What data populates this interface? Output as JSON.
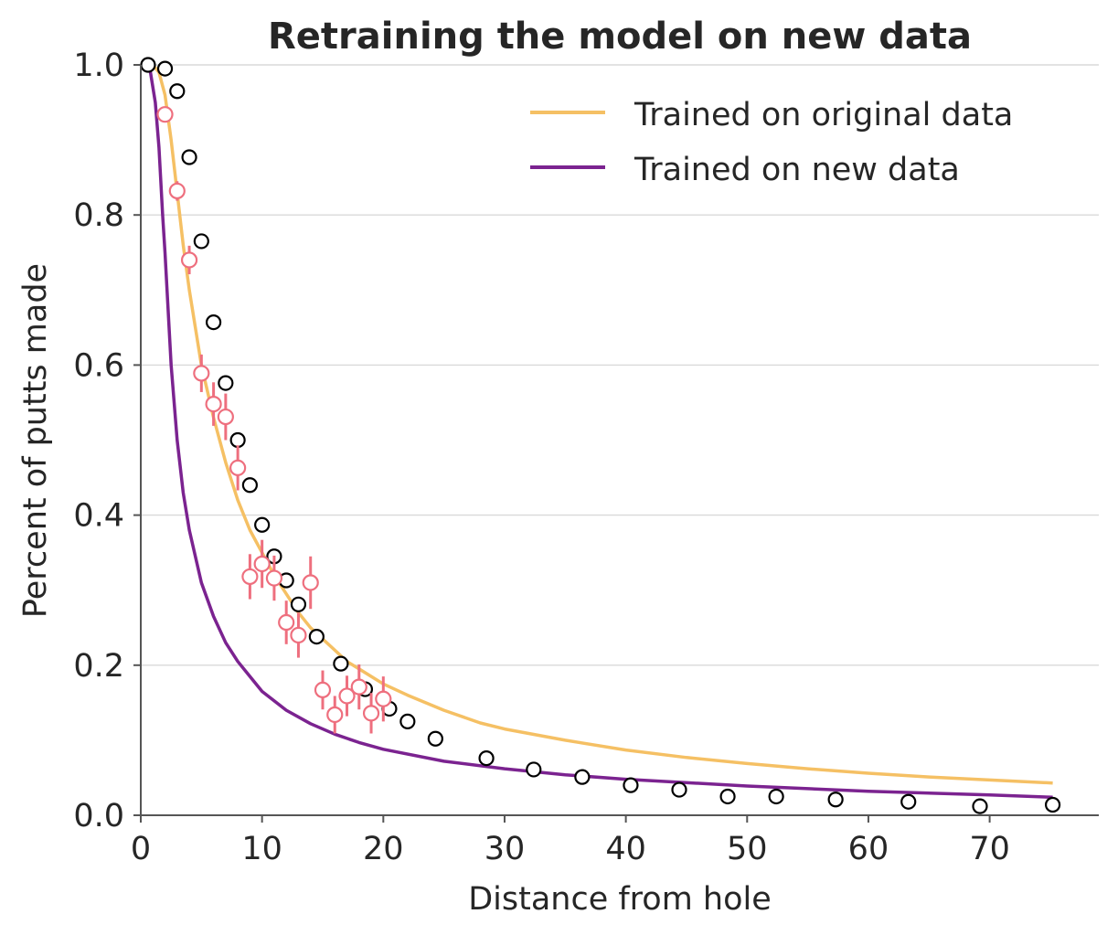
{
  "chart_data": {
    "type": "scatter",
    "title": "Retraining the model on new data",
    "xlabel": "Distance from hole",
    "ylabel": "Percent of putts made",
    "xlim": [
      0,
      79
    ],
    "ylim": [
      0,
      1.0
    ],
    "xticks": [
      0,
      10,
      20,
      30,
      40,
      50,
      60,
      70
    ],
    "xtick_labels": [
      "0",
      "10",
      "20",
      "30",
      "40",
      "50",
      "60",
      "70"
    ],
    "yticks": [
      0.0,
      0.2,
      0.4,
      0.6,
      0.8,
      1.0
    ],
    "ytick_labels": [
      "0.0",
      "0.2",
      "0.4",
      "0.6",
      "0.8",
      "1.0"
    ],
    "grid": "horizontal",
    "legend_position": "top-right",
    "series": [
      {
        "name": "Trained on original data",
        "kind": "line",
        "color": "#f5c064",
        "x": [
          0.3,
          1,
          1.5,
          2,
          2.5,
          3,
          3.5,
          4,
          4.5,
          5,
          6,
          7,
          8,
          9,
          10,
          11,
          12,
          13,
          14,
          15,
          16,
          17,
          18,
          19,
          20,
          22,
          25,
          28,
          30,
          35,
          40,
          45,
          50,
          55,
          60,
          65,
          70,
          75.2
        ],
        "y": [
          1.0,
          1.0,
          0.99,
          0.96,
          0.9,
          0.83,
          0.76,
          0.7,
          0.65,
          0.6,
          0.53,
          0.47,
          0.42,
          0.38,
          0.35,
          0.32,
          0.295,
          0.27,
          0.25,
          0.235,
          0.22,
          0.205,
          0.195,
          0.185,
          0.175,
          0.16,
          0.14,
          0.123,
          0.115,
          0.1,
          0.087,
          0.077,
          0.069,
          0.062,
          0.056,
          0.051,
          0.047,
          0.043
        ]
      },
      {
        "name": "Trained on new data",
        "kind": "line",
        "color": "#7b2390",
        "x": [
          0.3,
          0.8,
          1.2,
          1.5,
          1.8,
          2,
          2.5,
          3,
          3.5,
          4,
          5,
          6,
          7,
          8,
          9,
          10,
          12,
          14,
          16,
          18,
          20,
          25,
          30,
          35,
          40,
          50,
          60,
          70,
          75.2
        ],
        "y": [
          1.0,
          0.99,
          0.95,
          0.89,
          0.8,
          0.75,
          0.6,
          0.5,
          0.43,
          0.38,
          0.31,
          0.265,
          0.23,
          0.205,
          0.185,
          0.165,
          0.14,
          0.122,
          0.108,
          0.097,
          0.088,
          0.072,
          0.062,
          0.054,
          0.048,
          0.039,
          0.032,
          0.027,
          0.024
        ]
      }
    ],
    "original_points": {
      "color": "#000000",
      "x": [
        0.6,
        2.0,
        3.0,
        4.0,
        5.0,
        6.0,
        7.0,
        8.0,
        9.0,
        10.0,
        11.0,
        12.0,
        13.0,
        14.5,
        16.5,
        18.5,
        20.5,
        22.0,
        24.3,
        28.5,
        32.4,
        36.4,
        40.4,
        44.4,
        48.4,
        52.4,
        57.3,
        63.3,
        69.2,
        75.2
      ],
      "y": [
        1.0,
        0.995,
        0.965,
        0.877,
        0.765,
        0.657,
        0.576,
        0.5,
        0.44,
        0.387,
        0.345,
        0.313,
        0.281,
        0.238,
        0.202,
        0.168,
        0.142,
        0.125,
        0.102,
        0.076,
        0.061,
        0.051,
        0.04,
        0.034,
        0.025,
        0.025,
        0.021,
        0.018,
        0.012,
        0.014
      ]
    },
    "new_points": {
      "color": "#ee6f7e",
      "x": [
        2,
        3,
        4,
        5,
        6,
        7,
        8,
        9,
        10,
        11,
        12,
        13,
        14,
        15,
        16,
        17,
        18,
        19,
        20
      ],
      "y": [
        0.934,
        0.832,
        0.74,
        0.589,
        0.548,
        0.531,
        0.463,
        0.318,
        0.335,
        0.316,
        0.257,
        0.24,
        0.31,
        0.167,
        0.134,
        0.159,
        0.171,
        0.136,
        0.155
      ],
      "error": [
        0.01,
        0.013,
        0.019,
        0.025,
        0.029,
        0.031,
        0.03,
        0.03,
        0.032,
        0.03,
        0.029,
        0.03,
        0.035,
        0.026,
        0.025,
        0.027,
        0.03,
        0.027,
        0.03
      ]
    }
  }
}
